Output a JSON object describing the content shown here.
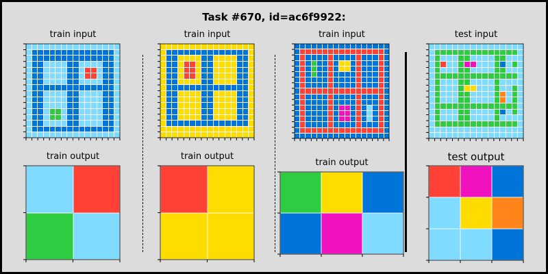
{
  "title": "Task #670, id=ac6f9922:",
  "palette": {
    "0": "#000000",
    "1": "#0074D9",
    "2": "#FF4136",
    "3": "#2ECC40",
    "4": "#FFDC00",
    "5": "#AAAAAA",
    "6": "#F012BE",
    "7": "#FF851B",
    "8": "#7FDBFF",
    "9": "#870C25"
  },
  "panels": [
    {
      "id": "train-1-input",
      "label": "train input",
      "box": [
        38,
        64,
        137,
        137
      ],
      "grid": [
        "8888888888888888",
        "8111111111111118",
        "8111111111111118",
        "8118888118888118",
        "8118888118228118",
        "8118888118228118",
        "8118888118888118",
        "8111111111111118",
        "8118888118888118",
        "8118888118888118",
        "8118888118888118",
        "8118338118888118",
        "8118338118888118",
        "8118888118888118",
        "8111111111111118",
        "8888888888888888"
      ]
    },
    {
      "id": "train-1-output",
      "label": "train output",
      "box": [
        38,
        242,
        137,
        137
      ],
      "grid": [
        "82",
        "38"
      ]
    },
    {
      "id": "train-2-input",
      "label": "train input",
      "box": [
        234,
        64,
        137,
        137
      ],
      "grid": [
        "4444444444444444",
        "4111111111111114",
        "4114444114444114",
        "4114224114444114",
        "4114224114444114",
        "4114224114444114",
        "4114444114444114",
        "4111111111111114",
        "4114444114444114",
        "4114444114444114",
        "4114444114444114",
        "4114444114444114",
        "4114444114444114",
        "4111111111111114",
        "4444444444444444",
        "4444444444444444"
      ]
    },
    {
      "id": "train-2-output",
      "label": "train output",
      "box": [
        234,
        242,
        137,
        137
      ],
      "grid": [
        "24",
        "44"
      ]
    },
    {
      "id": "train-3-input",
      "label": "train input",
      "box": [
        430,
        64,
        138,
        138
      ],
      "grid": [
        "11111111111111111",
        "12222222222222221",
        "12111121111211121",
        "12131121441211121",
        "12131121441211121",
        "12131121111211121",
        "12111121111211121",
        "12111121111211121",
        "12222222222222221",
        "12111121111211121",
        "12111121111211121",
        "12111121661218121",
        "12111121661218121",
        "12111121661218121",
        "12111121111211121",
        "12222222222222221",
        "11111111111111111"
      ]
    },
    {
      "id": "train-3-output",
      "label": "train output",
      "box": [
        409,
        251,
        180,
        120
      ],
      "grid": [
        "341",
        "168"
      ]
    },
    {
      "id": "test-input",
      "label": "test input",
      "box": [
        626,
        64,
        138,
        138
      ],
      "grid": [
        "8888888888888888",
        "8333333333333338",
        "8388833888833888",
        "8328836688831838",
        "8388833888833888",
        "8333333333333338",
        "8388833888838888",
        "8388834488838838",
        "8388833888837838",
        "8388833888837838",
        "8333333333333338",
        "8388833888831838",
        "8388833888838888",
        "8333333333333338",
        "8888888888888888",
        "8888888888888888"
      ]
    },
    {
      "id": "test-output",
      "label": "test output",
      "box": [
        626,
        242,
        138,
        138
      ],
      "grid": [
        "261",
        "847",
        "881"
      ]
    }
  ]
}
